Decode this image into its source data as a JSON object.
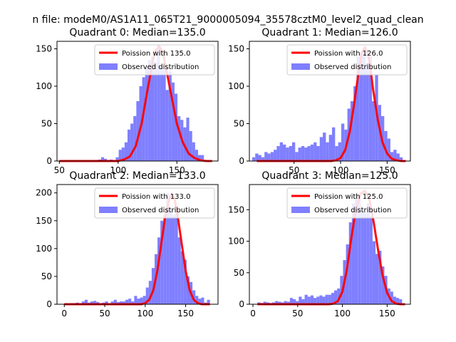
{
  "figure": {
    "suptitle": "n file: modeM0/AS1A11_065T21_9000005094_35578cztM0_level2_quad_clean"
  },
  "chart_data": [
    {
      "type": "bar",
      "title": "Quadrant 0: Median=135.0",
      "xlabel": "",
      "ylabel": "",
      "xlim": [
        48,
        185
      ],
      "ylim": [
        0,
        160
      ],
      "xticks": [
        50,
        100,
        150
      ],
      "yticks": [
        0,
        50,
        100,
        150
      ],
      "legend_position": "upper-right",
      "grid": false,
      "series": [
        {
          "name": "Poission with 135.0",
          "kind": "line",
          "color": "#ff0000",
          "x": [
            50,
            100,
            105,
            110,
            115,
            120,
            125,
            130,
            132,
            135,
            138,
            140,
            145,
            150,
            155,
            160,
            165,
            170,
            175,
            180
          ],
          "y": [
            0,
            0,
            2,
            6,
            20,
            50,
            95,
            137,
            148,
            153,
            146,
            130,
            90,
            50,
            25,
            10,
            4,
            1,
            0,
            0
          ]
        },
        {
          "name": "Observed distribution",
          "kind": "histogram",
          "color": "#7f7fff",
          "bin_start": 83,
          "bin_width": 2.5,
          "counts": [
            2,
            5,
            3,
            0,
            2,
            0,
            5,
            15,
            18,
            25,
            42,
            50,
            60,
            80,
            100,
            112,
            125,
            135,
            140,
            132,
            155,
            125,
            122,
            95,
            120,
            105,
            90,
            60,
            55,
            45,
            58,
            40,
            25,
            15,
            8,
            8
          ]
        }
      ]
    },
    {
      "type": "bar",
      "title": "Quadrant 1: Median=126.0",
      "xlabel": "",
      "ylabel": "",
      "xlim": [
        2,
        175
      ],
      "ylim": [
        0,
        160
      ],
      "xticks": [
        50,
        100,
        150
      ],
      "yticks": [
        0,
        50,
        100,
        150
      ],
      "legend_position": "upper-right",
      "grid": false,
      "series": [
        {
          "name": "Poission with 126.0",
          "kind": "line",
          "color": "#ff0000",
          "x": [
            10,
            90,
            95,
            100,
            105,
            110,
            115,
            120,
            123,
            126,
            129,
            132,
            135,
            140,
            145,
            150,
            155,
            160,
            165,
            170
          ],
          "y": [
            0,
            0,
            1,
            4,
            15,
            40,
            80,
            125,
            145,
            152,
            145,
            125,
            95,
            55,
            25,
            10,
            3,
            1,
            0,
            0
          ]
        },
        {
          "name": "Observed distribution",
          "kind": "histogram",
          "color": "#7f7fff",
          "bin_start": 5,
          "bin_width": 3.3,
          "counts": [
            5,
            10,
            8,
            5,
            12,
            10,
            12,
            15,
            20,
            25,
            22,
            18,
            20,
            25,
            12,
            18,
            20,
            18,
            20,
            22,
            25,
            20,
            32,
            38,
            25,
            35,
            45,
            20,
            25,
            50,
            42,
            70,
            80,
            100,
            140,
            145,
            150,
            130,
            140,
            80,
            115,
            75,
            60,
            40,
            30,
            12,
            15,
            10,
            5
          ]
        }
      ]
    },
    {
      "type": "bar",
      "title": "Quadrant 2: Median=133.0",
      "xlabel": "",
      "ylabel": "",
      "xlim": [
        -9,
        190
      ],
      "ylim": [
        0,
        215
      ],
      "xticks": [
        0,
        50,
        100,
        150
      ],
      "yticks": [
        0,
        50,
        100,
        150,
        200
      ],
      "legend_position": "upper-right",
      "grid": false,
      "series": [
        {
          "name": "Poission with 133.0",
          "kind": "line",
          "color": "#ff0000",
          "x": [
            0,
            95,
            100,
            105,
            110,
            115,
            120,
            125,
            130,
            133,
            136,
            140,
            145,
            150,
            155,
            160,
            165,
            170,
            175,
            180
          ],
          "y": [
            0,
            0,
            2,
            8,
            25,
            60,
            110,
            160,
            190,
            198,
            190,
            160,
            110,
            60,
            25,
            8,
            2,
            0,
            0,
            0
          ]
        },
        {
          "name": "Observed distribution",
          "kind": "histogram",
          "color": "#7f7fff",
          "bin_start": 0,
          "bin_width": 3.6,
          "counts": [
            2,
            1,
            2,
            2,
            3,
            2,
            5,
            8,
            3,
            5,
            6,
            4,
            2,
            3,
            5,
            2,
            5,
            8,
            4,
            5,
            5,
            8,
            10,
            5,
            15,
            10,
            12,
            15,
            30,
            42,
            65,
            90,
            120,
            150,
            160,
            200,
            170,
            160,
            165,
            120,
            95,
            80,
            50,
            40,
            25,
            15,
            10,
            12,
            3,
            8
          ]
        }
      ]
    },
    {
      "type": "bar",
      "title": "Quadrant 3: Median=125.0",
      "xlabel": "",
      "ylabel": "",
      "xlim": [
        -4,
        176
      ],
      "ylim": [
        0,
        190
      ],
      "xticks": [
        0,
        50,
        100,
        150
      ],
      "yticks": [
        0,
        50,
        100,
        150
      ],
      "legend_position": "upper-right",
      "grid": false,
      "series": [
        {
          "name": "Poission with 125.0",
          "kind": "line",
          "color": "#ff0000",
          "x": [
            5,
            85,
            90,
            95,
            100,
            105,
            110,
            115,
            120,
            125,
            130,
            135,
            140,
            145,
            150,
            155,
            160,
            165,
            170
          ],
          "y": [
            0,
            0,
            1,
            5,
            20,
            55,
            105,
            150,
            175,
            180,
            168,
            130,
            85,
            45,
            18,
            5,
            1,
            0,
            0
          ]
        },
        {
          "name": "Observed distribution",
          "kind": "histogram",
          "color": "#7f7fff",
          "bin_start": 5,
          "bin_width": 3.3,
          "counts": [
            3,
            2,
            4,
            3,
            2,
            3,
            5,
            4,
            3,
            5,
            4,
            10,
            8,
            5,
            12,
            8,
            15,
            12,
            14,
            10,
            12,
            14,
            12,
            15,
            15,
            18,
            22,
            25,
            45,
            70,
            95,
            130,
            160,
            175,
            170,
            150,
            145,
            160,
            140,
            100,
            80,
            85,
            60,
            45,
            25,
            20,
            12,
            10,
            8
          ]
        }
      ]
    }
  ]
}
